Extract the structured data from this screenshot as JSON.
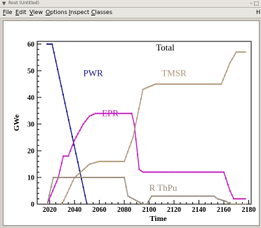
{
  "window": {
    "title": "Root (Untitled)",
    "menu": [
      {
        "label": "File",
        "key": "F"
      },
      {
        "label": "Edit",
        "key": "E"
      },
      {
        "label": "View",
        "key": "V"
      },
      {
        "label": "Options",
        "key": "O"
      },
      {
        "label": "Inspect",
        "key": "I"
      },
      {
        "label": "Classes",
        "key": "C"
      }
    ],
    "help_label": "H"
  },
  "colors": {
    "PWR": "#1a1a8c",
    "EPR": "#c21bc2",
    "TMSR": "#b09878",
    "R_ThPu": "#9a8c7a",
    "axis": "#000000"
  },
  "chart_data": {
    "type": "line",
    "title": "Total",
    "xlabel": "Time",
    "ylabel": "GWe",
    "xlim": [
      2010,
      2182
    ],
    "ylim": [
      0,
      61
    ],
    "xticks": [
      2020,
      2040,
      2060,
      2080,
      2100,
      2120,
      2140,
      2160,
      2180
    ],
    "yticks": [
      0,
      10,
      20,
      30,
      40,
      50,
      60
    ],
    "grid": false,
    "series": [
      {
        "name": "Total",
        "color": "#000000",
        "x": [
          2018,
          2182
        ],
        "y": [
          60,
          60
        ]
      },
      {
        "name": "PWR",
        "color": "#1a1a8c",
        "x": [
          2018,
          2022,
          2050
        ],
        "y": [
          60,
          60,
          0
        ]
      },
      {
        "name": "EPR",
        "color": "#c21bc2",
        "x": [
          2018,
          2027,
          2031,
          2035,
          2040,
          2047,
          2052,
          2057,
          2086,
          2088,
          2092,
          2095,
          2160,
          2165,
          2168,
          2178
        ],
        "y": [
          0,
          10,
          18,
          18,
          24,
          30,
          33,
          34,
          34,
          30,
          13,
          12,
          12,
          5,
          2,
          2
        ]
      },
      {
        "name": "TMSR",
        "color": "#b09878",
        "x": [
          2030,
          2040,
          2045,
          2052,
          2060,
          2070,
          2080,
          2087,
          2095,
          2105,
          2158,
          2165,
          2170,
          2178
        ],
        "y": [
          0,
          10,
          12,
          15,
          16,
          16,
          16,
          25,
          43,
          45,
          45,
          53,
          57,
          57
        ]
      },
      {
        "name": "R  ThPu",
        "color": "#9a8c7a",
        "x": [
          2018,
          2023,
          2026,
          2080,
          2083,
          2095,
          2098,
          2102,
          2152,
          2155,
          2162,
          2165,
          2170,
          2178
        ],
        "y": [
          0,
          10,
          10,
          10,
          3,
          0,
          0,
          3,
          3,
          2,
          1,
          0,
          0,
          0
        ]
      }
    ],
    "labels": [
      {
        "text": "PWR",
        "series": "PWR",
        "x": 2047,
        "y": 48
      },
      {
        "text": "EPR",
        "series": "EPR",
        "x": 2062,
        "y": 33
      },
      {
        "text": "TMSR",
        "series": "TMSR",
        "x": 2110,
        "y": 48
      },
      {
        "text": "R  ThPu",
        "series": "R  ThPu",
        "x": 2100,
        "y": 5
      }
    ]
  }
}
